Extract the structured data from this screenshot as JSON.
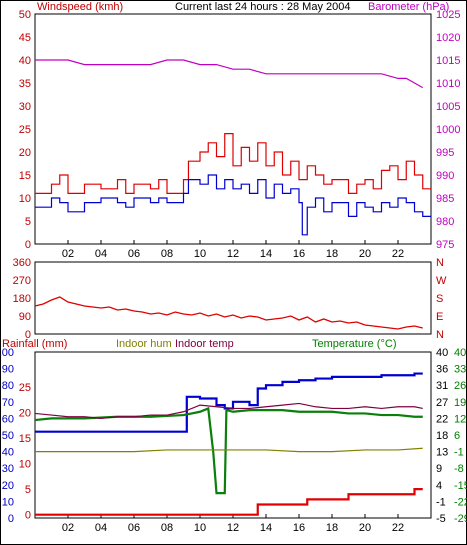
{
  "header": {
    "left_label": "Windspeed (kmh)",
    "center_label": "Current last 24 hours : 28 May 2004",
    "right_label": "Barometer (hPa)"
  },
  "bottom_header": {
    "rainfall_label": "Rainfall (mm)",
    "indoor_hum_label": "Indoor hum",
    "indoor_temp_label": "Indoor temp",
    "temperature_label": "Temperature (°C)"
  },
  "colors": {
    "wind_gust": "#e00000",
    "wind_avg": "#0000d0",
    "barometer": "#c000c0",
    "direction": "#e00000",
    "rainfall": "#e00000",
    "indoor_hum": "#808000",
    "indoor_temp": "#800040",
    "temperature": "#0b7f0b",
    "humidity": "#0000d0",
    "axis_left": "#c00000",
    "axis_right": "#c000c0",
    "axis_blue": "#0000c0",
    "axis_green": "#008000"
  },
  "chart_data": [
    {
      "type": "line",
      "name": "wind-barometer",
      "x_ticks": [
        "02",
        "04",
        "06",
        "08",
        "10",
        "12",
        "14",
        "16",
        "18",
        "20",
        "22"
      ],
      "y_left_ticks": [
        "0",
        "5",
        "10",
        "15",
        "20",
        "25",
        "30",
        "35",
        "40",
        "45",
        "50"
      ],
      "y_right_ticks": [
        "975",
        "980",
        "985",
        "990",
        "995",
        "1000",
        "1005",
        "1010",
        "1015",
        "1020",
        "1025"
      ],
      "ylim_left": [
        0,
        50
      ],
      "ylim_right": [
        975,
        1025
      ],
      "xlim": [
        0,
        24
      ],
      "series": [
        {
          "key": "gust",
          "step": true,
          "x": [
            0,
            1,
            1.5,
            2,
            3,
            4,
            5,
            5.5,
            6,
            7,
            7.5,
            8,
            9,
            9.3,
            10,
            10.5,
            11,
            11.5,
            12,
            12.5,
            13,
            13.5,
            14,
            14.5,
            15,
            15.5,
            16,
            16.5,
            17,
            17.5,
            18,
            19,
            19.5,
            20,
            20.5,
            21,
            21.5,
            22,
            22.5,
            23,
            23.5
          ],
          "y": [
            11,
            13,
            15,
            11,
            13,
            12,
            14,
            11,
            13,
            12,
            14,
            11,
            14,
            18,
            20,
            22,
            19,
            24,
            17,
            21,
            18,
            22,
            17,
            20,
            15,
            18,
            14,
            17,
            15,
            13,
            14,
            11,
            13,
            14,
            12,
            16,
            17,
            14,
            18,
            15,
            12
          ]
        },
        {
          "key": "average",
          "step": true,
          "x": [
            0,
            1,
            1.5,
            2,
            3,
            4,
            5,
            5.5,
            6,
            7,
            7.5,
            8,
            9,
            9.3,
            10,
            10.5,
            11,
            11.5,
            12,
            12.5,
            13,
            13.5,
            14,
            14.5,
            15,
            15.5,
            16,
            16.2,
            16.5,
            17,
            17.5,
            18,
            19,
            19.5,
            20,
            20.5,
            21,
            21.5,
            22,
            22.5,
            23,
            23.5
          ],
          "y": [
            8,
            10,
            9,
            7,
            9,
            10,
            9,
            8,
            10,
            9,
            10,
            9,
            11,
            14,
            13,
            15,
            12,
            14,
            12,
            13,
            11,
            14,
            10,
            13,
            11,
            12,
            9,
            2,
            8,
            10,
            7,
            9,
            6,
            9,
            8,
            7,
            9,
            8,
            10,
            9,
            7,
            6
          ]
        },
        {
          "key": "barometer",
          "x": [
            0,
            2,
            3,
            4,
            6,
            7,
            8,
            9,
            10,
            11,
            12,
            13,
            14,
            15,
            16,
            17,
            18,
            19,
            20,
            21,
            22,
            22.5,
            23,
            23.5
          ],
          "y": [
            1015,
            1015,
            1014,
            1014,
            1014,
            1014,
            1015,
            1015,
            1014,
            1014,
            1013,
            1013,
            1012,
            1012,
            1012,
            1012,
            1012,
            1012,
            1012,
            1012,
            1011,
            1011,
            1010,
            1009
          ]
        }
      ]
    },
    {
      "type": "line",
      "name": "wind-direction",
      "x_ticks": [],
      "y_left_ticks": [
        "0",
        "90",
        "180",
        "270",
        "360"
      ],
      "y_right_ticks": [
        "N",
        "E",
        "S",
        "W",
        "N"
      ],
      "ylim_left": [
        0,
        360
      ],
      "xlim": [
        0,
        24
      ],
      "series": [
        {
          "key": "direction",
          "x": [
            0,
            0.5,
            1,
            1.5,
            2,
            2.5,
            3,
            3.5,
            4,
            4.5,
            5,
            5.5,
            6,
            6.5,
            7,
            7.5,
            8,
            8.5,
            9,
            9.5,
            10,
            10.5,
            11,
            11.5,
            12,
            12.5,
            13,
            13.5,
            14,
            14.5,
            15,
            15.5,
            16,
            16.5,
            17,
            17.5,
            18,
            18.5,
            19,
            19.5,
            20,
            20.5,
            21,
            21.5,
            22,
            22.5,
            23,
            23.5
          ],
          "y": [
            140,
            150,
            170,
            185,
            160,
            150,
            140,
            135,
            130,
            135,
            120,
            125,
            115,
            110,
            100,
            105,
            95,
            110,
            100,
            95,
            105,
            90,
            100,
            85,
            95,
            80,
            90,
            85,
            70,
            75,
            80,
            90,
            70,
            85,
            60,
            75,
            60,
            65,
            55,
            60,
            45,
            40,
            35,
            30,
            25,
            35,
            40,
            30
          ]
        }
      ]
    },
    {
      "type": "line",
      "name": "rain-temp-humidity",
      "x_ticks": [
        "02",
        "04",
        "06",
        "08",
        "10",
        "12",
        "14",
        "16",
        "18",
        "20",
        "22"
      ],
      "y_left_ticks": [
        "0",
        "10",
        "20",
        "30",
        "40",
        "50",
        "60",
        "70",
        "80",
        "90",
        "100"
      ],
      "y_left2_ticks": [
        "0",
        "5",
        "10",
        "15",
        "20",
        "25"
      ],
      "y_right1_ticks": [
        "-5",
        "-1",
        "4",
        "9",
        "13",
        "18",
        "22",
        "27",
        "31",
        "36",
        "40"
      ],
      "y_right2_ticks": [
        "-29",
        "-22",
        "-15",
        "-8",
        "-1",
        "6",
        "12",
        "19",
        "26",
        "33",
        "40"
      ],
      "ylim_left": [
        0,
        100
      ],
      "xlim": [
        0,
        24
      ],
      "series": [
        {
          "key": "humidity",
          "step": true,
          "x": [
            0,
            9,
            9.2,
            10,
            11,
            11.5,
            12,
            13,
            13.5,
            14,
            15,
            16,
            17,
            18,
            19,
            20,
            21,
            22,
            23,
            23.5
          ],
          "y": [
            52,
            52,
            73,
            72,
            68,
            66,
            70,
            68,
            78,
            80,
            82,
            83,
            84,
            85,
            85,
            85,
            86,
            86,
            87,
            87
          ]
        },
        {
          "key": "temperature",
          "x": [
            0,
            1,
            3,
            5,
            7,
            9,
            9.5,
            10,
            10.5,
            10.8,
            11,
            11.5,
            11.6,
            12,
            13,
            14,
            15,
            16,
            17,
            18,
            19,
            20,
            21,
            22,
            23,
            23.5
          ],
          "y": [
            59,
            60,
            60,
            61,
            61,
            62,
            63,
            64,
            66,
            40,
            15,
            15,
            65,
            64,
            65,
            65,
            65,
            64,
            64,
            64,
            63,
            63,
            62,
            62,
            61,
            61
          ]
        },
        {
          "key": "indoor_temp",
          "x": [
            0,
            1,
            2,
            3,
            4,
            5,
            6,
            7,
            8,
            9,
            10,
            11,
            12,
            13,
            14,
            15,
            16,
            17,
            18,
            19,
            20,
            21,
            22,
            23,
            23.5
          ],
          "y": [
            63,
            62,
            61,
            61,
            60,
            61,
            61,
            62,
            62,
            64,
            68,
            67,
            66,
            66,
            67,
            68,
            69,
            67,
            66,
            66,
            67,
            66,
            67,
            67,
            66
          ]
        },
        {
          "key": "indoor_hum",
          "x": [
            0,
            2,
            4,
            6,
            8,
            10,
            12,
            14,
            16,
            18,
            20,
            22,
            23.5
          ],
          "y": [
            40,
            40,
            40,
            40,
            41,
            41,
            41,
            41,
            40,
            40,
            41,
            41,
            42
          ]
        },
        {
          "key": "rainfall",
          "step": true,
          "x": [
            0,
            12,
            13.5,
            16.5,
            19,
            23,
            23.5
          ],
          "y": [
            0,
            0,
            2,
            3,
            4,
            5,
            5
          ]
        }
      ]
    }
  ]
}
